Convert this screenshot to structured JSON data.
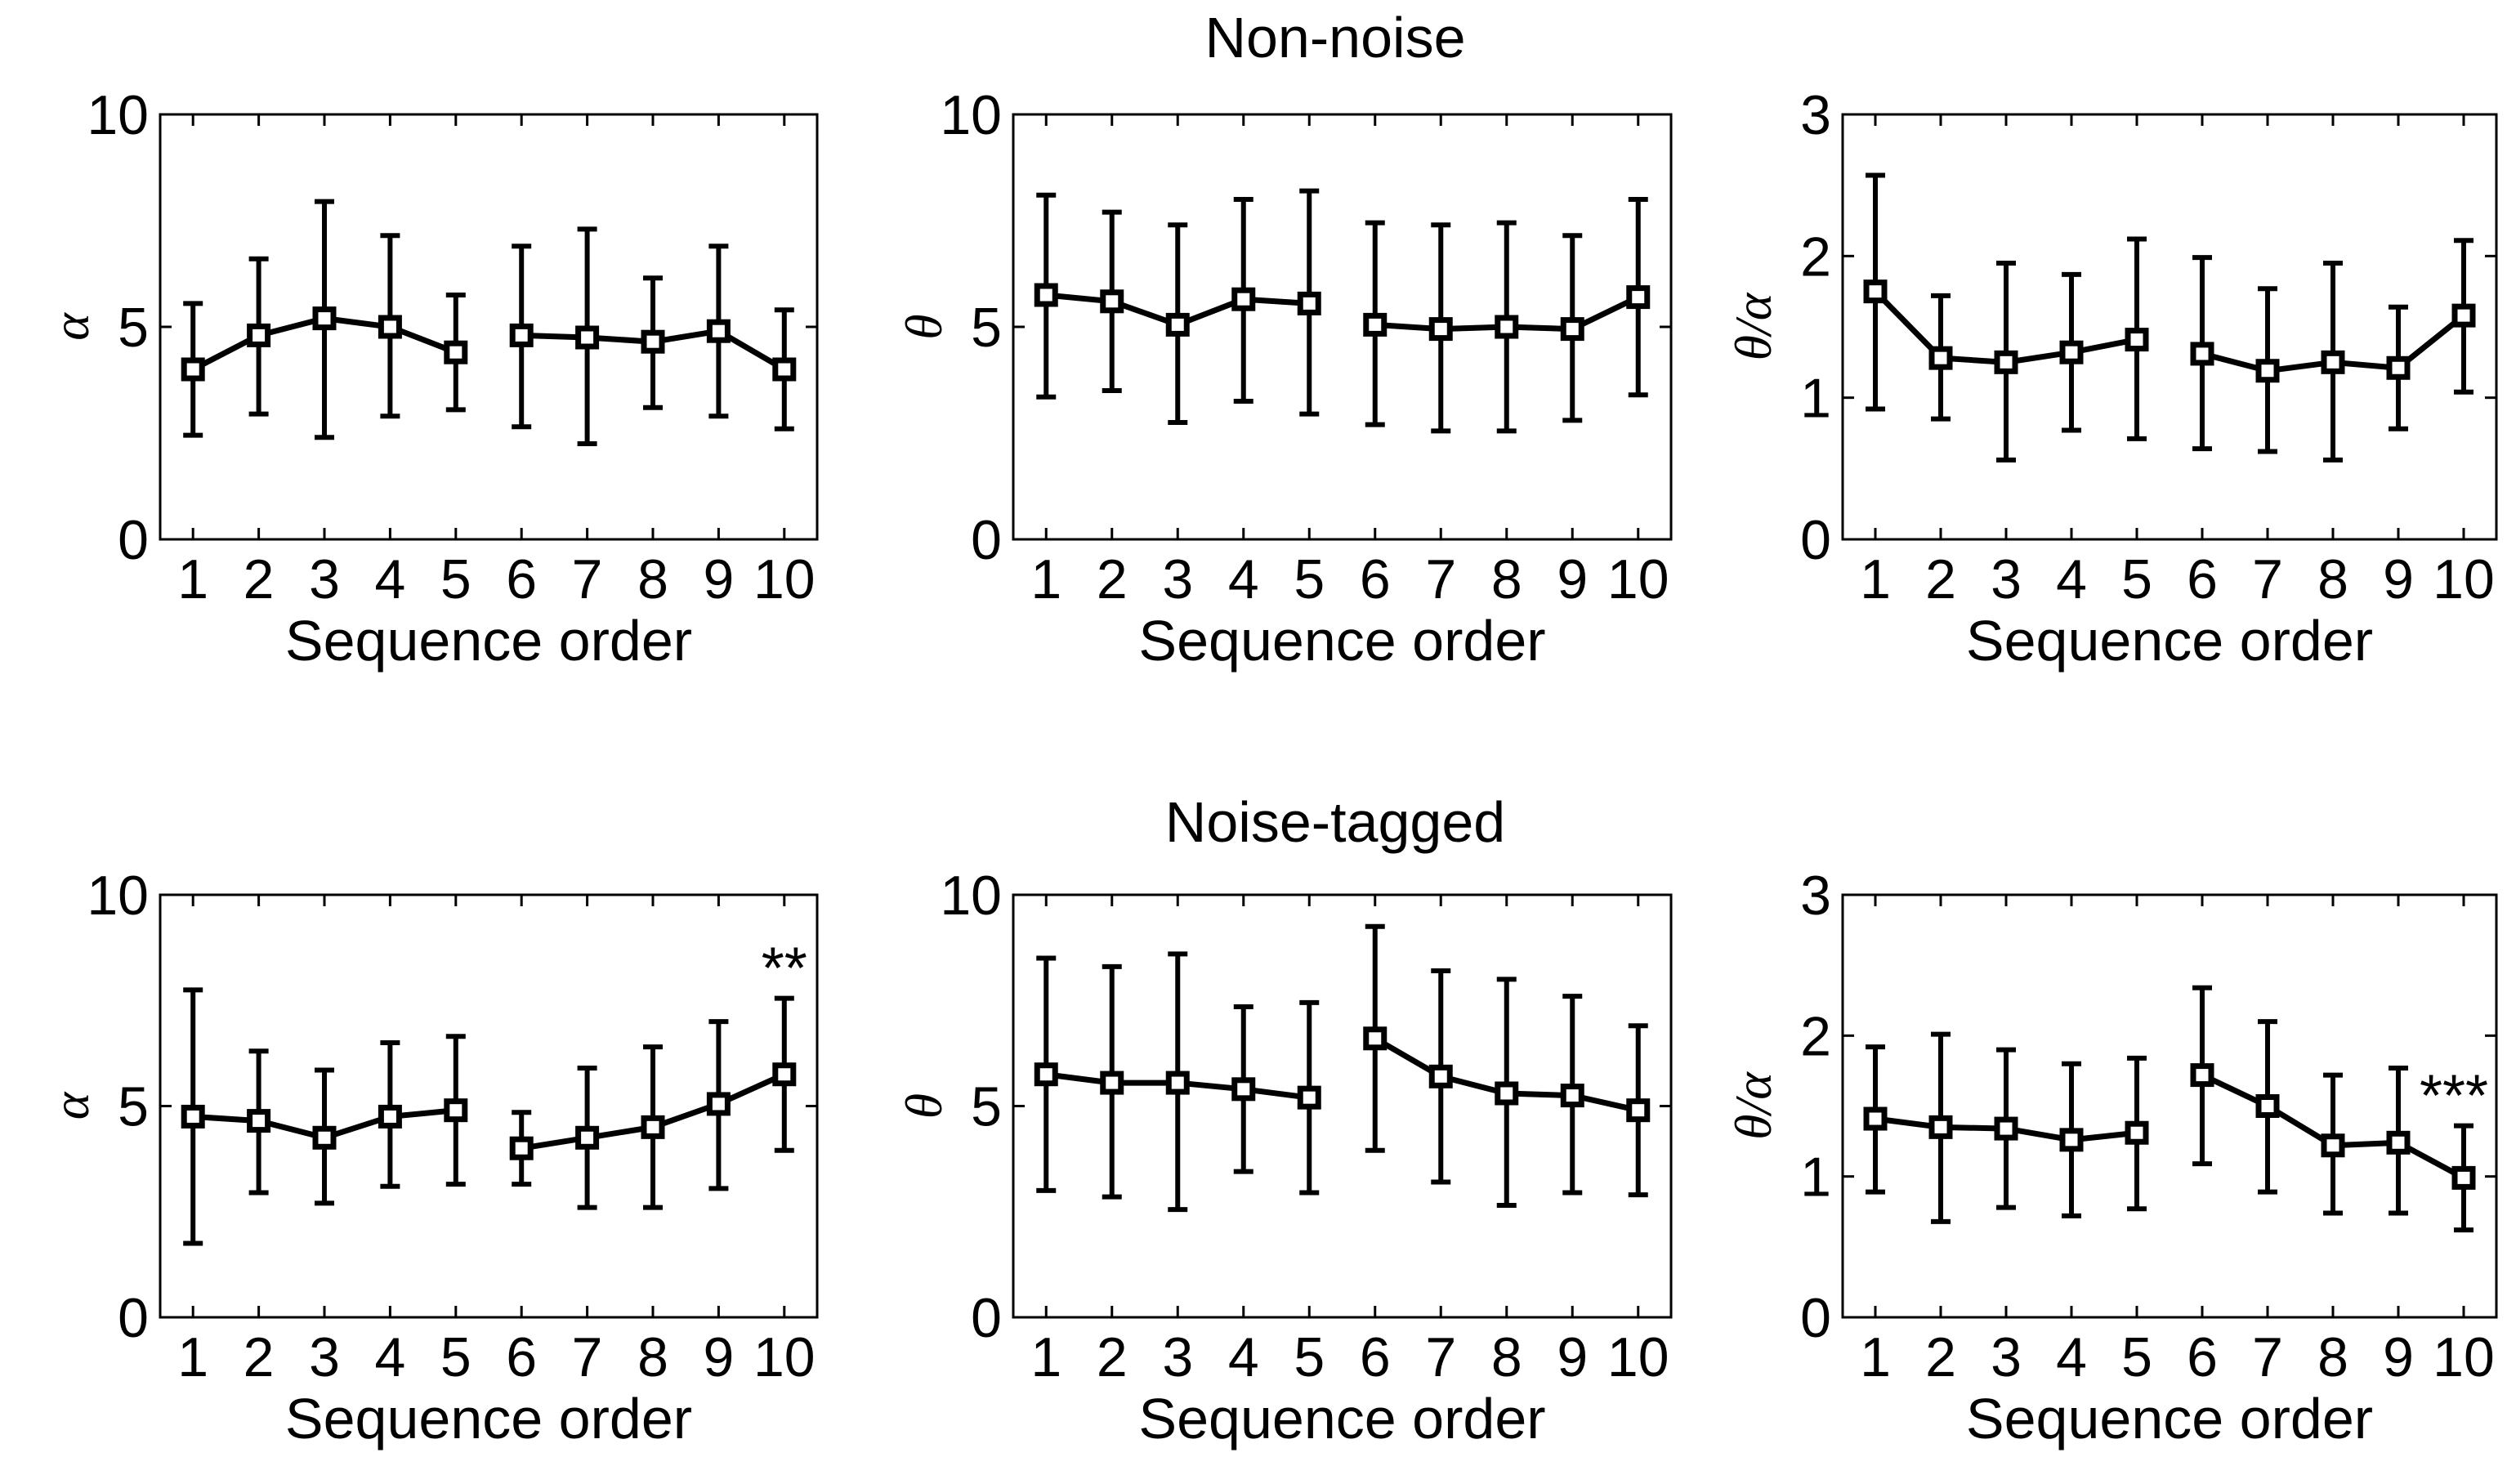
{
  "figure": {
    "row_titles": [
      "Non-noise",
      "Noise-tagged"
    ]
  },
  "chart_data": [
    {
      "type": "line",
      "panel": "non-noise-alpha",
      "row": "Non-noise",
      "xlabel": "Sequence order",
      "ylabel": "α",
      "xlim": [
        0.5,
        10.5
      ],
      "ylim": [
        0,
        10
      ],
      "yticks": [
        0,
        5,
        10
      ],
      "x": [
        1,
        2,
        3,
        4,
        5,
        6,
        7,
        8,
        9,
        10
      ],
      "segments": [
        [
          1,
          5
        ],
        [
          6,
          10
        ]
      ],
      "series": [
        {
          "name": "α",
          "values": [
            4.0,
            4.8,
            5.2,
            5.0,
            4.4,
            4.8,
            4.75,
            4.65,
            4.9,
            4.0
          ],
          "err_low": [
            2.45,
            2.95,
            2.4,
            2.9,
            3.05,
            2.65,
            2.25,
            3.1,
            2.9,
            2.6
          ],
          "err_high": [
            5.55,
            6.6,
            7.95,
            7.15,
            5.75,
            6.9,
            7.3,
            6.15,
            6.9,
            5.4
          ]
        }
      ],
      "annotation": ""
    },
    {
      "type": "line",
      "panel": "non-noise-theta",
      "row": "Non-noise",
      "xlabel": "Sequence order",
      "ylabel": "θ",
      "xlim": [
        0.5,
        10.5
      ],
      "ylim": [
        0,
        10
      ],
      "yticks": [
        0,
        5,
        10
      ],
      "x": [
        1,
        2,
        3,
        4,
        5,
        6,
        7,
        8,
        9,
        10
      ],
      "segments": [
        [
          1,
          5
        ],
        [
          6,
          10
        ]
      ],
      "series": [
        {
          "name": "θ",
          "values": [
            5.75,
            5.6,
            5.05,
            5.65,
            5.55,
            5.05,
            4.95,
            5.0,
            4.95,
            5.7
          ],
          "err_low": [
            3.35,
            3.5,
            2.75,
            3.25,
            2.95,
            2.7,
            2.55,
            2.55,
            2.8,
            3.4
          ],
          "err_high": [
            8.1,
            7.7,
            7.4,
            8.0,
            8.2,
            7.45,
            7.4,
            7.45,
            7.15,
            8.0
          ]
        }
      ],
      "annotation": ""
    },
    {
      "type": "line",
      "panel": "non-noise-ratio",
      "row": "Non-noise",
      "xlabel": "Sequence order",
      "ylabel": "θ/α",
      "xlim": [
        0.5,
        10.5
      ],
      "ylim": [
        0,
        3
      ],
      "yticks": [
        0,
        1,
        2,
        3
      ],
      "x": [
        1,
        2,
        3,
        4,
        5,
        6,
        7,
        8,
        9,
        10
      ],
      "segments": [
        [
          1,
          5
        ],
        [
          6,
          10
        ]
      ],
      "series": [
        {
          "name": "θ/α",
          "values": [
            1.75,
            1.28,
            1.25,
            1.32,
            1.41,
            1.31,
            1.19,
            1.25,
            1.21,
            1.58
          ],
          "err_low": [
            0.92,
            0.85,
            0.56,
            0.77,
            0.71,
            0.64,
            0.62,
            0.56,
            0.78,
            1.04
          ],
          "err_high": [
            2.57,
            1.72,
            1.95,
            1.87,
            2.12,
            1.99,
            1.77,
            1.95,
            1.64,
            2.11
          ]
        }
      ],
      "annotation": ""
    },
    {
      "type": "line",
      "panel": "noise-tagged-alpha",
      "row": "Noise-tagged",
      "xlabel": "Sequence order",
      "ylabel": "α",
      "xlim": [
        0.5,
        10.5
      ],
      "ylim": [
        0,
        10
      ],
      "yticks": [
        0,
        5,
        10
      ],
      "x": [
        1,
        2,
        3,
        4,
        5,
        6,
        7,
        8,
        9,
        10
      ],
      "segments": [
        [
          1,
          5
        ],
        [
          6,
          10
        ]
      ],
      "series": [
        {
          "name": "α",
          "values": [
            4.75,
            4.65,
            4.25,
            4.75,
            4.9,
            4.0,
            4.25,
            4.5,
            5.05,
            5.75
          ],
          "err_low": [
            1.75,
            2.95,
            2.7,
            3.1,
            3.15,
            3.15,
            2.6,
            2.6,
            3.05,
            3.95
          ],
          "err_high": [
            7.75,
            6.3,
            5.85,
            6.5,
            6.65,
            4.85,
            5.9,
            6.4,
            7.0,
            7.55
          ]
        }
      ],
      "annotation": "**"
    },
    {
      "type": "line",
      "panel": "noise-tagged-theta",
      "row": "Noise-tagged",
      "xlabel": "Sequence order",
      "ylabel": "θ",
      "xlim": [
        0.5,
        10.5
      ],
      "ylim": [
        0,
        10
      ],
      "yticks": [
        0,
        5,
        10
      ],
      "x": [
        1,
        2,
        3,
        4,
        5,
        6,
        7,
        8,
        9,
        10
      ],
      "segments": [
        [
          1,
          5
        ],
        [
          6,
          10
        ]
      ],
      "series": [
        {
          "name": "θ",
          "values": [
            5.75,
            5.55,
            5.55,
            5.4,
            5.2,
            6.6,
            5.7,
            5.3,
            5.25,
            4.9
          ],
          "err_low": [
            3.0,
            2.85,
            2.55,
            3.45,
            2.95,
            3.95,
            3.2,
            2.65,
            2.95,
            2.9
          ],
          "err_high": [
            8.5,
            8.3,
            8.6,
            7.35,
            7.45,
            9.25,
            8.2,
            8.0,
            7.6,
            6.9
          ]
        }
      ],
      "annotation": ""
    },
    {
      "type": "line",
      "panel": "noise-tagged-ratio",
      "row": "Noise-tagged",
      "xlabel": "Sequence order",
      "ylabel": "θ/α",
      "xlim": [
        0.5,
        10.5
      ],
      "ylim": [
        0,
        3
      ],
      "yticks": [
        0,
        1,
        2,
        3
      ],
      "x": [
        1,
        2,
        3,
        4,
        5,
        6,
        7,
        8,
        9,
        10
      ],
      "segments": [
        [
          1,
          5
        ],
        [
          6,
          10
        ]
      ],
      "series": [
        {
          "name": "θ/α",
          "values": [
            1.41,
            1.35,
            1.34,
            1.26,
            1.31,
            1.72,
            1.5,
            1.22,
            1.24,
            0.99
          ],
          "err_low": [
            0.89,
            0.68,
            0.78,
            0.72,
            0.77,
            1.09,
            0.89,
            0.74,
            0.74,
            0.62
          ],
          "err_high": [
            1.92,
            2.01,
            1.9,
            1.8,
            1.84,
            2.34,
            2.1,
            1.72,
            1.77,
            1.36
          ]
        }
      ],
      "annotation": "***"
    }
  ]
}
